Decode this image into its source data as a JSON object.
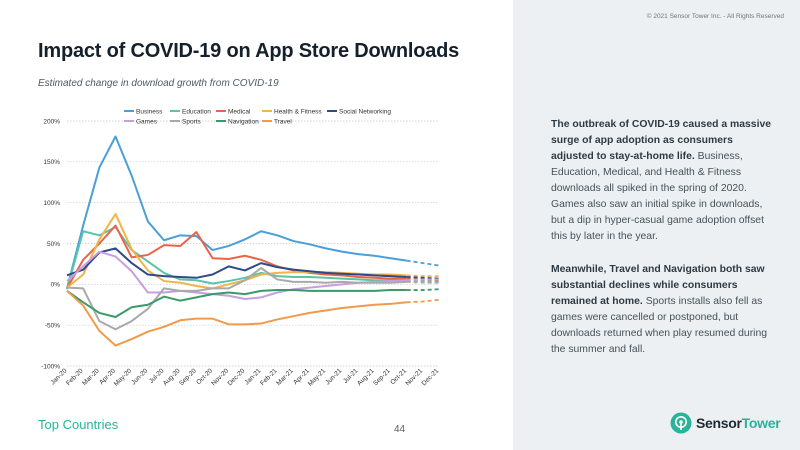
{
  "header": {
    "copyright": "© 2021 Sensor Tower Inc. - All Rights Reserved",
    "title": "Impact of COVID-19 on App Store Downloads",
    "subtitle": "Estimated change in download growth from COVID-19"
  },
  "sidebar": {
    "para1_bold": "The outbreak of COVID-19 caused a massive surge of app adoption as consumers adjusted to stay-at-home life.",
    "para1_rest": " Business, Education, Medical, and Health & Fitness downloads all spiked in the spring of 2020. Games also saw an initial spike in downloads, but a dip in hyper-casual game adoption offset this by later in the year.",
    "para2_bold": "Meanwhile, Travel and Navigation both saw substantial declines while consumers remained at home.",
    "para2_rest": " Sports installs also fell as games were cancelled or postponed, but downloads returned when play resumed during the summer and fall."
  },
  "footer": {
    "link": "Top Countries",
    "page_number": "44",
    "logo_sensor": "Sensor",
    "logo_tower": "Tower"
  },
  "colors": {
    "accent": "#2ab39a",
    "gridline": "#c8c8c8"
  },
  "chart_data": {
    "type": "line",
    "ylim": [
      -100,
      200
    ],
    "yticks": [
      -100,
      -50,
      0,
      50,
      100,
      150,
      200
    ],
    "ytick_labels": [
      "-100%",
      "-50%",
      "0%",
      "50%",
      "100%",
      "150%",
      "200%"
    ],
    "categories": [
      "Jan-20",
      "Feb-20",
      "Mar-20",
      "Apr-20",
      "May-20",
      "Jun-20",
      "Jul-20",
      "Aug-20",
      "Sep-20",
      "Oct-20",
      "Nov-20",
      "Dec-20",
      "Jan-21",
      "Feb-21",
      "Mar-21",
      "Apr-21",
      "May-21",
      "Jun-21",
      "Jul-21",
      "Aug-21",
      "Sep-21",
      "Oct-21",
      "Nov-21",
      "Dec-21"
    ],
    "actual_points": 22,
    "legend_rows": [
      [
        "Business",
        "Education",
        "Medical",
        "Health & Fitness",
        "Social Networking"
      ],
      [
        "Games",
        "Sports",
        "Navigation",
        "Travel"
      ]
    ],
    "series": [
      {
        "name": "Business",
        "color": "#4a9fd8",
        "values": [
          -5,
          72,
          143,
          181,
          133,
          77,
          54,
          60,
          59,
          42,
          47,
          55,
          65,
          60,
          53,
          49,
          44,
          40,
          37,
          35,
          32,
          29,
          26,
          23
        ]
      },
      {
        "name": "Education",
        "color": "#5bc4a8",
        "values": [
          -6,
          65,
          60,
          70,
          42,
          28,
          14,
          6,
          5,
          1,
          4,
          8,
          14,
          10,
          9,
          9,
          8,
          7,
          6,
          5,
          5,
          4,
          4,
          3
        ]
      },
      {
        "name": "Medical",
        "color": "#e8654a",
        "values": [
          -5,
          30,
          50,
          72,
          33,
          36,
          48,
          47,
          64,
          32,
          31,
          35,
          30,
          22,
          17,
          14,
          12,
          11,
          9,
          8,
          7,
          7,
          6,
          5
        ]
      },
      {
        "name": "Health & Fitness",
        "color": "#f0b44a",
        "values": [
          -4,
          12,
          55,
          86,
          43,
          17,
          4,
          2,
          -2,
          -5,
          0,
          5,
          12,
          14,
          15,
          15,
          15,
          14,
          13,
          12,
          12,
          11,
          10,
          10
        ]
      },
      {
        "name": "Social Networking",
        "color": "#2d4a8a",
        "values": [
          11,
          18,
          39,
          44,
          26,
          12,
          10,
          9,
          8,
          12,
          22,
          17,
          26,
          21,
          18,
          16,
          14,
          13,
          12,
          11,
          10,
          9,
          8,
          7
        ]
      },
      {
        "name": "Games",
        "color": "#c79ee0",
        "values": [
          4,
          22,
          40,
          34,
          16,
          -10,
          -10,
          -8,
          -10,
          -12,
          -14,
          -18,
          -16,
          -10,
          -6,
          -4,
          -2,
          0,
          2,
          3,
          4,
          5,
          6,
          6
        ]
      },
      {
        "name": "Sports",
        "color": "#a9a9a9",
        "values": [
          -4,
          -5,
          -45,
          -55,
          -45,
          -30,
          -5,
          -8,
          -8,
          -5,
          -5,
          5,
          20,
          6,
          3,
          3,
          2,
          3,
          2,
          2,
          2,
          3,
          2,
          2
        ]
      },
      {
        "name": "Navigation",
        "color": "#3a9a6a",
        "values": [
          -8,
          -22,
          -35,
          -40,
          -28,
          -25,
          -15,
          -20,
          -16,
          -12,
          -10,
          -12,
          -8,
          -7,
          -7,
          -8,
          -8,
          -8,
          -8,
          -8,
          -7,
          -7,
          -7,
          -6
        ]
      },
      {
        "name": "Travel",
        "color": "#f09a4a",
        "values": [
          -8,
          -26,
          -57,
          -75,
          -67,
          -58,
          -52,
          -44,
          -42,
          -42,
          -49,
          -49,
          -48,
          -43,
          -39,
          -35,
          -32,
          -29,
          -27,
          -25,
          -24,
          -22,
          -21,
          -19
        ]
      }
    ]
  }
}
